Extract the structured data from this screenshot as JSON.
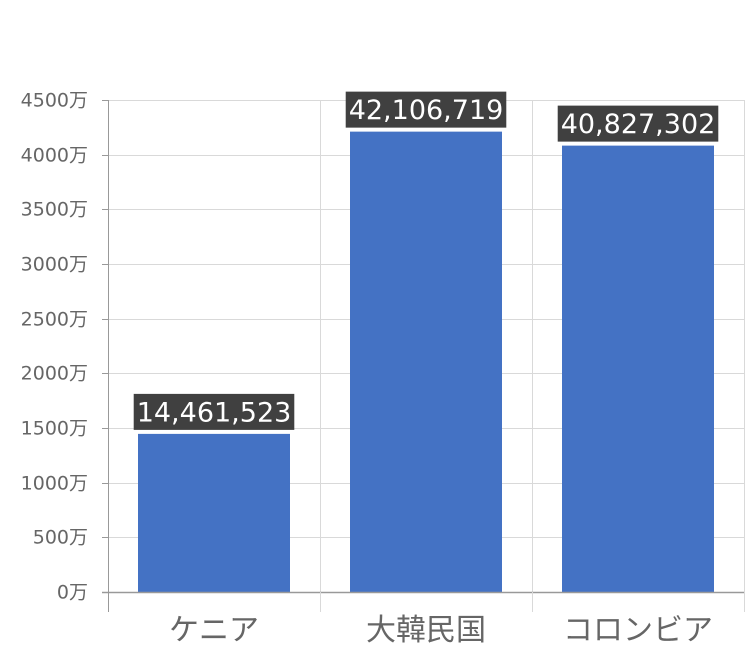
{
  "chart_data": {
    "type": "bar",
    "categories": [
      "ケニア",
      "大韓民国",
      "コロンビア"
    ],
    "values": [
      14461523,
      42106719,
      40827302
    ],
    "data_labels": [
      "14,461,523",
      "42,106,719",
      "40,827,302"
    ],
    "ylim": [
      0,
      45000000
    ],
    "yticks": [
      {
        "value": 0,
        "label": "0万"
      },
      {
        "value": 5000000,
        "label": "500万"
      },
      {
        "value": 10000000,
        "label": "1000万"
      },
      {
        "value": 15000000,
        "label": "1500万"
      },
      {
        "value": 20000000,
        "label": "2000万"
      },
      {
        "value": 25000000,
        "label": "2500万"
      },
      {
        "value": 30000000,
        "label": "3000万"
      },
      {
        "value": 35000000,
        "label": "3500万"
      },
      {
        "value": 40000000,
        "label": "4000万"
      },
      {
        "value": 45000000,
        "label": "4500万"
      }
    ],
    "grid": true,
    "colors": {
      "bar": "#4472c4",
      "label_bg": "#404040",
      "grid": "#d9d9d9",
      "axis": "#999999"
    }
  }
}
